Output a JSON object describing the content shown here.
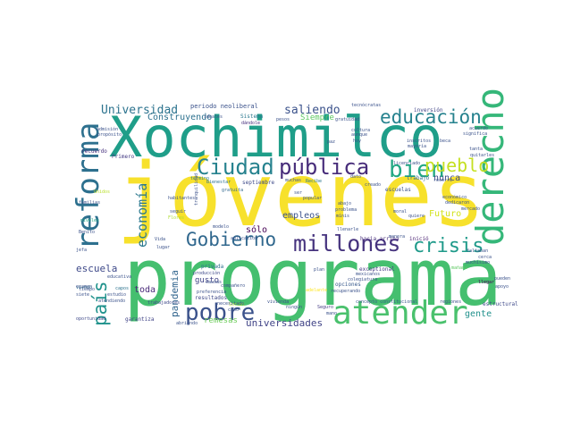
{
  "wordcloud": {
    "words": [
      {
        "text": "jóvenes",
        "color": "#f7e12c"
      },
      {
        "text": "programa",
        "color": "#45bf6f"
      },
      {
        "text": "Xochimilco",
        "color": "#1f9e89"
      },
      {
        "text": "atender",
        "color": "#4ac16d"
      },
      {
        "text": "derecho",
        "color": "#35b779"
      },
      {
        "text": "reforma",
        "color": "#2d708e"
      },
      {
        "text": "millones",
        "color": "#46337e"
      },
      {
        "text": "Gobierno",
        "color": "#31688e"
      },
      {
        "text": "pobre",
        "color": "#3b528b"
      },
      {
        "text": "educación",
        "color": "#26828e"
      },
      {
        "text": "Ciudad",
        "color": "#26828e"
      },
      {
        "text": "pública",
        "color": "#472c7a"
      },
      {
        "text": "bien",
        "color": "#22a884"
      },
      {
        "text": "crisis",
        "color": "#1f9a8a"
      },
      {
        "text": "pueblo",
        "color": "#c5e021"
      },
      {
        "text": "país",
        "color": "#20928c"
      },
      {
        "text": "economía",
        "color": "#2a788e"
      },
      {
        "text": "pandemia",
        "color": "#32658e"
      },
      {
        "text": "Universidad",
        "color": "#2c738e"
      },
      {
        "text": "saliendo",
        "color": "#3b528b"
      },
      {
        "text": "Construyendo",
        "color": "#2d718e"
      },
      {
        "text": "escuela",
        "color": "#3e4989"
      },
      {
        "text": "universidades",
        "color": "#414487"
      },
      {
        "text": "empleos",
        "color": "#3b528b"
      },
      {
        "text": "sólo",
        "color": "#440154"
      },
      {
        "text": "nunca",
        "color": "#3e4989"
      },
      {
        "text": "Futuro",
        "color": "#d2e21b"
      },
      {
        "text": "gente",
        "color": "#21918c"
      },
      {
        "text": "toda",
        "color": "#482878"
      },
      {
        "text": "Siempre",
        "color": "#5ec962"
      },
      {
        "text": "gusto",
        "color": "#414487"
      },
      {
        "text": "remesas",
        "color": "#6ccd5a"
      },
      {
        "text": "periodo neoliberal",
        "color": "#3b528b"
      },
      {
        "text": "opciones",
        "color": "#38598c"
      },
      {
        "text": "exceptional",
        "color": "#443983"
      },
      {
        "text": "privada",
        "color": "#2d708e"
      },
      {
        "text": "resultados",
        "color": "#3e4989"
      },
      {
        "text": "trabajo",
        "color": "#31688e"
      },
      {
        "text": "escuelas",
        "color": "#3b528b"
      },
      {
        "text": "hacia arriba",
        "color": "#472d7b"
      },
      {
        "text": "inició",
        "color": "#481f70"
      },
      {
        "text": "septiembre",
        "color": "#3e4a89"
      },
      {
        "text": "Sistema",
        "color": "#2a788e"
      },
      {
        "text": "inversión",
        "color": "#414487"
      },
      {
        "text": "tecnócratas",
        "color": "#3b528b"
      },
      {
        "text": "Primero",
        "color": "#443a83"
      },
      {
        "text": "recuerdo",
        "color": "#46307e"
      },
      {
        "text": "Bienestar",
        "color": "#2c728e"
      },
      {
        "text": "seguir",
        "color": "#3b528b"
      },
      {
        "text": "estructural",
        "color": "#3e4989"
      },
      {
        "text": "regiones",
        "color": "#3b528b"
      },
      {
        "text": "garantiza",
        "color": "#414487"
      },
      {
        "text": "trabajadores",
        "color": "#3e4989"
      },
      {
        "text": "concepto constitucional",
        "color": "#38598c"
      },
      {
        "text": "adelante",
        "color": "#fde725"
      },
      {
        "text": "recuperando",
        "color": "#3b528b"
      },
      {
        "text": "Social",
        "color": "#b5de2b"
      },
      {
        "text": "producción",
        "color": "#3e4989"
      },
      {
        "text": "preferencia",
        "color": "#3b528b"
      },
      {
        "text": "Unidos",
        "color": "#b8de29"
      },
      {
        "text": "oportunidad",
        "color": "#3e4989"
      },
      {
        "text": "llegar",
        "color": "#440154"
      },
      {
        "text": "cerca",
        "color": "#3b528b"
      },
      {
        "text": "faltaban",
        "color": "#3b528b"
      },
      {
        "text": "manera",
        "color": "#3b528b"
      },
      {
        "text": "mañana",
        "color": "#5ec962"
      },
      {
        "text": "Seguro",
        "color": "#443a83"
      },
      {
        "text": "mano",
        "color": "#3b528b"
      },
      {
        "text": "capos",
        "color": "#2c738e"
      },
      {
        "text": "viendo",
        "color": "#2c728e"
      },
      {
        "text": "jefa",
        "color": "#3b528b"
      },
      {
        "text": "Vida",
        "color": "#3b528b"
      },
      {
        "text": "lugar",
        "color": "#3b528b"
      },
      {
        "text": "popular",
        "color": "#3b528b"
      },
      {
        "text": "modelo",
        "color": "#3b528b"
      },
      {
        "text": "gratuita",
        "color": "#31688e"
      },
      {
        "text": "Recibe",
        "color": "#2a788e"
      },
      {
        "text": "término",
        "color": "#2a788e"
      },
      {
        "text": "habitantes",
        "color": "#3b528b"
      },
      {
        "text": "Flores",
        "color": "#addc30"
      },
      {
        "text": "Benito",
        "color": "#3b528b"
      },
      {
        "text": "niveles",
        "color": "#21a585"
      },
      {
        "text": "familias",
        "color": "#3b528b"
      },
      {
        "text": "cultura",
        "color": "#3b528b"
      },
      {
        "text": "dándole",
        "color": "#46307e"
      },
      {
        "text": "hoy",
        "color": "#3b528b"
      },
      {
        "text": "paz",
        "color": "#3b528b"
      },
      {
        "text": "inscritos",
        "color": "#3b528b"
      },
      {
        "text": "beca",
        "color": "#3b528b"
      },
      {
        "text": "mayoría",
        "color": "#3b528b"
      },
      {
        "text": "pesos",
        "color": "#3b528b"
      },
      {
        "text": "propósito",
        "color": "#3b528b"
      },
      {
        "text": "acuerdo",
        "color": "#3b528b"
      },
      {
        "text": "significa",
        "color": "#3b528b"
      },
      {
        "text": "mercado",
        "color": "#3b528b"
      },
      {
        "text": "económico",
        "color": "#3b528b"
      },
      {
        "text": "dedicaron",
        "color": "#3b528b"
      },
      {
        "text": "quitarles",
        "color": "#3b528b"
      },
      {
        "text": "tanta",
        "color": "#3b528b"
      },
      {
        "text": "muchísimo",
        "color": "#3b528b"
      },
      {
        "text": "pueden",
        "color": "#3b528b"
      },
      {
        "text": "quiere",
        "color": "#3b528b"
      },
      {
        "text": "abajo",
        "color": "#3b528b"
      },
      {
        "text": "problema",
        "color": "#3b528b"
      },
      {
        "text": "mínis",
        "color": "#3b528b"
      },
      {
        "text": "mexicanos",
        "color": "#3b528b"
      },
      {
        "text": "colegiatura",
        "color": "#3b528b"
      },
      {
        "text": "dato",
        "color": "#3b528b"
      },
      {
        "text": "creado",
        "color": "#3b528b"
      },
      {
        "text": "llenarle",
        "color": "#3b528b"
      },
      {
        "text": "compañero",
        "color": "#3b528b"
      },
      {
        "text": "educativa",
        "color": "#3b528b"
      },
      {
        "text": "examen",
        "color": "#3b528b"
      },
      {
        "text": "estudio",
        "color": "#3b528b"
      },
      {
        "text": "atendiendo",
        "color": "#3b528b"
      },
      {
        "text": "abriendo",
        "color": "#3b528b"
      },
      {
        "text": "necesitado",
        "color": "#3b528b"
      },
      {
        "text": "cabo",
        "color": "#3b528b"
      },
      {
        "text": "ningún",
        "color": "#3b528b"
      },
      {
        "text": "aplicación",
        "color": "#3b528b"
      },
      {
        "text": "tiempo",
        "color": "#3b528b"
      },
      {
        "text": "admisión",
        "color": "#3b528b"
      },
      {
        "text": "apoyo",
        "color": "#3b528b"
      },
      {
        "text": "plan",
        "color": "#3b528b"
      },
      {
        "text": "moral",
        "color": "#3b528b"
      },
      {
        "text": "muchas",
        "color": "#3b528b"
      },
      {
        "text": "gratuidad",
        "color": "#3b528b"
      },
      {
        "text": "aunque",
        "color": "#3b528b"
      },
      {
        "text": "tranquilidad",
        "color": "#3b528b"
      },
      {
        "text": "vivienda",
        "color": "#3b528b"
      },
      {
        "text": "causas",
        "color": "#3b528b"
      },
      {
        "text": "ideales",
        "color": "#3b528b"
      },
      {
        "text": "siete",
        "color": "#3b528b"
      },
      {
        "text": "licenciado",
        "color": "#3b528b"
      },
      {
        "text": "recorre",
        "color": "#3b528b"
      },
      {
        "text": "ser",
        "color": "#3b528b"
      }
    ]
  }
}
